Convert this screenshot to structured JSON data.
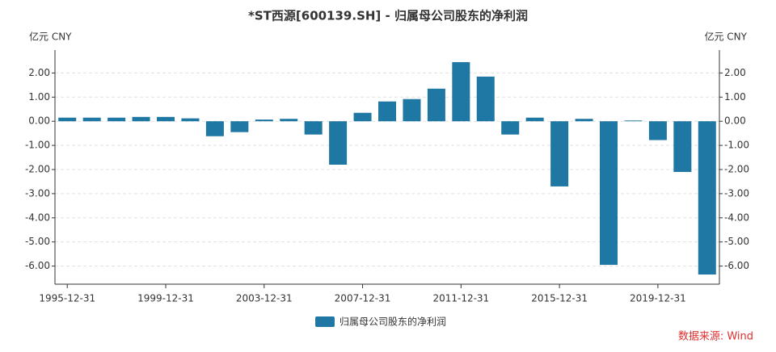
{
  "chart_data": {
    "type": "bar",
    "title": "*ST西源[600139.SH] - 归属母公司股东的净利润",
    "y_unit_left": "亿元  CNY",
    "y_unit_right": "亿元  CNY",
    "source": "数据来源: Wind",
    "categories": [
      "1995-12-31",
      null,
      null,
      null,
      "1999-12-31",
      null,
      null,
      null,
      "2003-12-31",
      null,
      null,
      null,
      "2007-12-31",
      null,
      null,
      null,
      "2011-12-31",
      null,
      null,
      null,
      "2015-12-31",
      null,
      null,
      null,
      "2019-12-31",
      null,
      null
    ],
    "series": [
      {
        "name": "归属母公司股东的净利润",
        "color": "#1f77a4",
        "values": [
          0.15,
          0.15,
          0.15,
          0.18,
          0.18,
          0.12,
          -0.62,
          -0.45,
          0.07,
          0.1,
          -0.55,
          -1.8,
          0.35,
          0.82,
          0.92,
          1.35,
          2.45,
          1.85,
          -0.55,
          0.15,
          -2.7,
          0.1,
          -5.95,
          0.03,
          -0.78,
          -2.1,
          -6.35
        ]
      }
    ],
    "ylim": [
      -6.75,
      2.95
    ],
    "yticks": [
      {
        "value": -6,
        "label": "-6.00"
      },
      {
        "value": -5,
        "label": "-5.00"
      },
      {
        "value": -4,
        "label": "-4.00"
      },
      {
        "value": -3,
        "label": "-3.00"
      },
      {
        "value": -2,
        "label": "-2.00"
      },
      {
        "value": -1,
        "label": "-1.00"
      },
      {
        "value": 0,
        "label": "0.00"
      },
      {
        "value": 1,
        "label": "1.00"
      },
      {
        "value": 2,
        "label": "2.00"
      }
    ],
    "grid": true
  }
}
